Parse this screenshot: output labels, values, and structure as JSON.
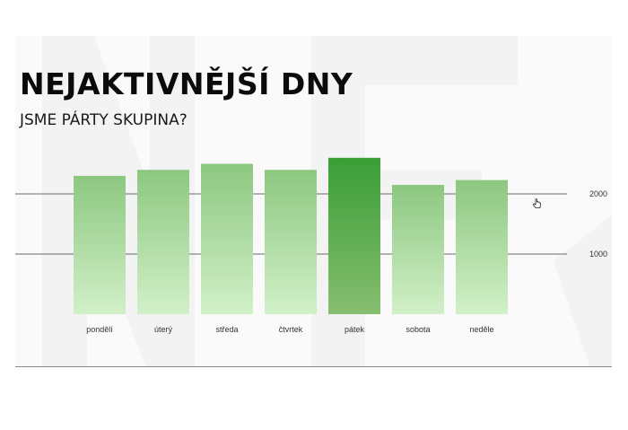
{
  "slide": {
    "title": "NEJAKTIVNĚJŠÍ DNY",
    "subtitle": "JSME PÁRTY SKUPINA?"
  },
  "colors": {
    "bar_top": "#8cc780",
    "bar_bottom": "#d2f0c8",
    "highlight_top": "#3a9e36",
    "highlight_bottom": "#86be70",
    "gridline": "#6a6a6a",
    "background": "#fafafa"
  },
  "icons": [
    "hand-pointer-icon"
  ],
  "chart_data": {
    "type": "bar",
    "categories": [
      "pondělí",
      "úterý",
      "středa",
      "čtvrtek",
      "pátek",
      "sobota",
      "neděle"
    ],
    "values": [
      2300,
      2400,
      2500,
      2400,
      2600,
      2150,
      2230
    ],
    "highlight_index": 4,
    "yticks": [
      1000,
      2000
    ],
    "ytick_labels": [
      "1000",
      "2000"
    ],
    "ylim": [
      0,
      2600
    ],
    "grid": true,
    "axis_position": "right"
  }
}
